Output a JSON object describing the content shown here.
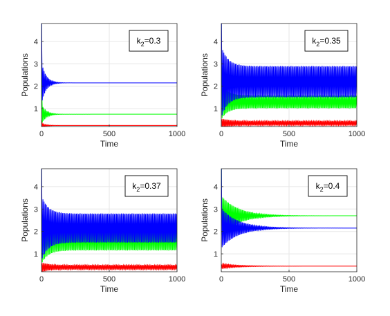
{
  "colors": {
    "species_1": "#ff0000",
    "species_2": "#00ff00",
    "species_3": "#0000ff",
    "grid": "#e6e6e6",
    "axis": "#262626"
  },
  "chart_data": [
    {
      "type": "line",
      "annotation": {
        "k": "k",
        "sub": "2",
        "rest": "=0.3",
        "value": 0.3
      },
      "xlabel": "Time",
      "ylabel": "Populations",
      "xlim": [
        0,
        1000
      ],
      "ylim": [
        0.2,
        4.8
      ],
      "xticks": [
        "0",
        "500",
        "1000"
      ],
      "yticks": [
        "1",
        "2",
        "3",
        "4"
      ],
      "grid": true,
      "series": [
        {
          "color": "#ff0000",
          "start": 0.35,
          "final": 0.25,
          "amp": 0.1,
          "decay": 0.03,
          "limit_amp": 0
        },
        {
          "color": "#00ff00",
          "start": 1.2,
          "final": 0.75,
          "amp": 0.45,
          "decay": 0.03,
          "limit_amp": 0
        },
        {
          "color": "#0000ff",
          "start": 2.4,
          "final": 2.15,
          "amp": 0.95,
          "decay": 0.03,
          "limit_amp": 0
        }
      ]
    },
    {
      "type": "line",
      "annotation": {
        "k": "k",
        "sub": "2",
        "rest": "=0.35",
        "value": 0.35
      },
      "xlabel": "Time",
      "ylabel": "Populations",
      "xlim": [
        0,
        1000
      ],
      "ylim": [
        0.2,
        4.8
      ],
      "xticks": [
        "0",
        "500",
        "1000"
      ],
      "yticks": [
        "1",
        "2",
        "3",
        "4"
      ],
      "grid": true,
      "series": [
        {
          "color": "#ff0000",
          "start": 0.35,
          "final": 0.35,
          "amp": 0.12,
          "decay": 0.02,
          "limit_amp": 0.1
        },
        {
          "color": "#00ff00",
          "start": 1.2,
          "final": 1.3,
          "amp": 0.5,
          "decay": 0.02,
          "limit_amp": 0.28
        },
        {
          "color": "#0000ff",
          "start": 2.4,
          "final": 2.2,
          "amp": 0.9,
          "decay": 0.02,
          "limit_amp": 0.7
        }
      ]
    },
    {
      "type": "line",
      "annotation": {
        "k": "k",
        "sub": "2",
        "rest": "=0.37",
        "value": 0.37
      },
      "xlabel": "Time",
      "ylabel": "Populations",
      "xlim": [
        0,
        1000
      ],
      "ylim": [
        0.2,
        4.8
      ],
      "xticks": [
        "0",
        "500",
        "1000"
      ],
      "yticks": [
        "1",
        "2",
        "3",
        "4"
      ],
      "grid": true,
      "series": [
        {
          "color": "#ff0000",
          "start": 0.4,
          "final": 0.4,
          "amp": 0.12,
          "decay": 0.02,
          "limit_amp": 0.1
        },
        {
          "color": "#00ff00",
          "start": 1.4,
          "final": 1.65,
          "amp": 0.6,
          "decay": 0.02,
          "limit_amp": 0.5
        },
        {
          "color": "#0000ff",
          "start": 2.3,
          "final": 2.15,
          "amp": 0.8,
          "decay": 0.02,
          "limit_amp": 0.65
        }
      ]
    },
    {
      "type": "line",
      "annotation": {
        "k": "k",
        "sub": "2",
        "rest": "=0.4",
        "value": 0.4
      },
      "xlabel": "Time",
      "ylabel": "Populations",
      "xlim": [
        0,
        1000
      ],
      "ylim": [
        0.2,
        4.8
      ],
      "xticks": [
        "0",
        "500",
        "1000"
      ],
      "yticks": [
        "1",
        "2",
        "3",
        "4"
      ],
      "grid": true,
      "series": [
        {
          "color": "#ff0000",
          "start": 0.4,
          "final": 0.45,
          "amp": 0.12,
          "decay": 0.008,
          "limit_amp": 0
        },
        {
          "color": "#00ff00",
          "start": 2.4,
          "final": 2.7,
          "amp": 0.9,
          "decay": 0.008,
          "limit_amp": 0
        },
        {
          "color": "#0000ff",
          "start": 2.4,
          "final": 2.15,
          "amp": 0.9,
          "decay": 0.008,
          "limit_amp": 0
        }
      ]
    }
  ]
}
